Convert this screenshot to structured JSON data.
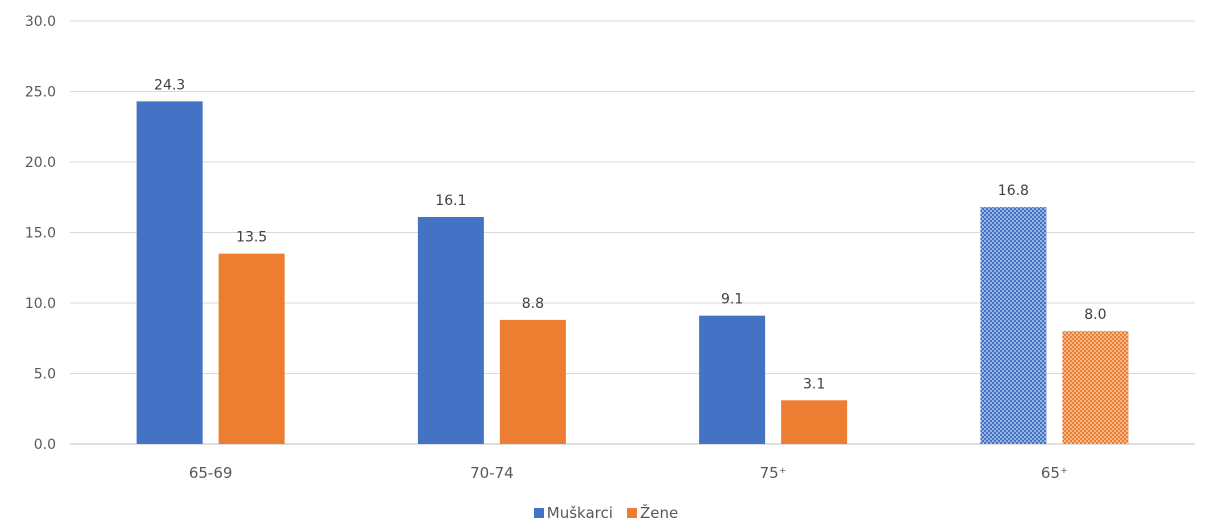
{
  "chart_data": {
    "type": "bar",
    "categories": [
      "65-69",
      "70-74",
      "75⁺",
      "65⁺"
    ],
    "series": [
      {
        "name": "Muškarci",
        "values": [
          24.3,
          16.1,
          9.1,
          16.8
        ],
        "color": "#4472C4"
      },
      {
        "name": "Žene",
        "values": [
          13.5,
          8.8,
          3.1,
          8.0
        ],
        "color": "#ED7D31"
      }
    ],
    "data_labels": [
      [
        "24.3",
        "16.1",
        "9.1",
        "16.8"
      ],
      [
        "13.5",
        "8.8",
        "3.1",
        "8.0"
      ]
    ],
    "y_ticks": [
      "0.0",
      "5.0",
      "10.0",
      "15.0",
      "20.0",
      "25.0",
      "30.0"
    ],
    "ylim": [
      0,
      30
    ],
    "grid": true,
    "legend_position": "bottom",
    "patterned_category": "65⁺"
  }
}
